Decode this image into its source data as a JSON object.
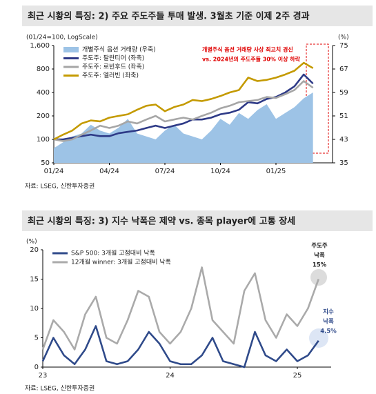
{
  "chart_data": [
    {
      "type": "line",
      "title": "최근 시황의 특징: 2) 주요 주도주들 투매 발생. 3월초 기준 이제 2주 경과",
      "y_label": "(01/24=100, LogScale)",
      "y2_label": "(%)",
      "source": "자료: LSEG, 신한투자증권",
      "log_scale": true,
      "grid": false,
      "categories": [
        "01/24",
        null,
        null,
        null,
        null,
        null,
        "04/24",
        null,
        null,
        null,
        null,
        null,
        "07/24",
        null,
        null,
        null,
        null,
        null,
        "10/24",
        null,
        null,
        null,
        null,
        null,
        "01/25",
        null,
        null,
        null,
        null
      ],
      "ylim": [
        50,
        1600
      ],
      "yticks": [
        50,
        100,
        200,
        400,
        800,
        {
          "value": 1600,
          "label": "1,600"
        }
      ],
      "y2lim": [
        35,
        75
      ],
      "y2ticks": [
        35,
        43,
        51,
        59,
        67,
        75
      ],
      "series": [
        {
          "name": "개별주식 옵션 거래량 (우축)",
          "type": "area",
          "axis": "y2",
          "color": "#9dc3e6",
          "values": [
            40,
            42,
            44,
            45,
            48,
            46,
            45,
            47,
            50,
            45,
            44,
            43,
            46,
            48,
            45,
            44,
            43,
            46,
            50,
            48,
            52,
            50,
            53,
            55,
            50,
            52,
            54,
            57,
            59
          ]
        },
        {
          "name": "주도주: 팔란티어 (좌축)",
          "type": "line",
          "color": "#2e3a87",
          "values": [
            100,
            100,
            105,
            110,
            115,
            110,
            110,
            120,
            125,
            130,
            140,
            150,
            140,
            150,
            160,
            180,
            180,
            190,
            210,
            220,
            240,
            300,
            290,
            330,
            350,
            400,
            480,
            680,
            520
          ]
        },
        {
          "name": "주도주: 로빈후드 (좌축)",
          "type": "line",
          "color": "#a6a6a6",
          "values": [
            100,
            95,
            100,
            115,
            130,
            150,
            140,
            150,
            170,
            160,
            180,
            200,
            170,
            180,
            190,
            180,
            200,
            220,
            250,
            270,
            300,
            310,
            320,
            350,
            340,
            380,
            430,
            560,
            460
          ]
        },
        {
          "name": "주도주: 엘러빈 (좌축)",
          "type": "line",
          "color": "#c49a00",
          "values": [
            100,
            115,
            130,
            160,
            175,
            170,
            190,
            200,
            210,
            240,
            270,
            280,
            230,
            260,
            280,
            320,
            310,
            330,
            360,
            400,
            430,
            620,
            560,
            580,
            620,
            680,
            760,
            960,
            820
          ]
        }
      ],
      "annotations": [
        "개별주식 옵션 거래량 사상 최고치 경신",
        "vs. 2024년의 주도주들 30% 이상 하락"
      ]
    },
    {
      "type": "line",
      "title": "최근 시황의 특징: 3) 지수 낙폭은 제약 vs. 종목 player에 고통 장세",
      "y_label": "(%)",
      "source": "자료: LSEG, 신한투자증권",
      "log_scale": false,
      "grid": false,
      "categories": [
        "23",
        null,
        null,
        null,
        null,
        null,
        null,
        null,
        null,
        null,
        null,
        null,
        "24",
        null,
        null,
        null,
        null,
        null,
        null,
        null,
        null,
        null,
        null,
        null,
        "25",
        null,
        null
      ],
      "ylim": [
        0,
        20
      ],
      "yticks": [
        0,
        5,
        10,
        15,
        20
      ],
      "series": [
        {
          "name": "S&P 500: 3개월 고점대비 낙폭",
          "type": "line",
          "color": "#2f4a8a",
          "values": [
            1,
            5,
            2,
            0.5,
            3,
            7,
            1,
            0.5,
            1,
            3,
            6,
            4,
            1,
            0.5,
            0.5,
            2,
            5,
            1,
            0.5,
            0,
            6,
            2,
            1,
            3,
            1,
            2,
            4.5
          ]
        },
        {
          "name": "12개월 winner: 3개월 고점대비 낙폭",
          "type": "line",
          "color": "#aaaaaa",
          "values": [
            3,
            8,
            6,
            3,
            9,
            12,
            5,
            4,
            8,
            13,
            12,
            6,
            4,
            6,
            10,
            17,
            8,
            6,
            4,
            13,
            16,
            8,
            5,
            9,
            7,
            10,
            15
          ]
        }
      ],
      "annotations": [
        "주도주",
        "낙폭",
        "15%",
        "지수",
        "낙폭",
        "4.5%"
      ]
    }
  ]
}
